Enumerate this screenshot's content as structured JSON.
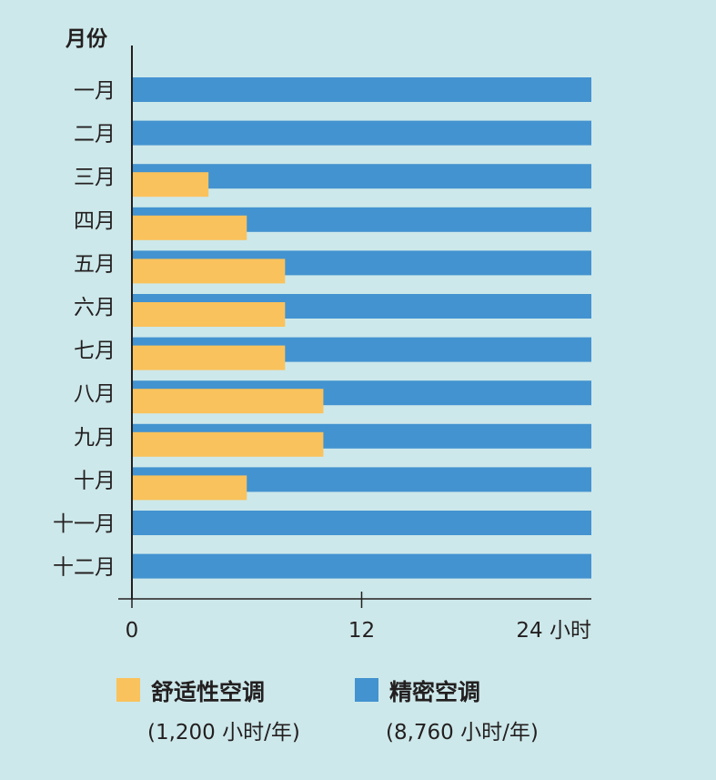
{
  "chart_data": {
    "type": "bar",
    "orientation": "horizontal",
    "ylabel": "月份",
    "xlabel_unit": "小时",
    "categories": [
      "一月",
      "二月",
      "三月",
      "四月",
      "五月",
      "六月",
      "七月",
      "八月",
      "九月",
      "十月",
      "十一月",
      "十二月"
    ],
    "series": [
      {
        "name": "精密空调",
        "note": "(8,760 小时/年)",
        "color": "#4393d0",
        "values": [
          24,
          24,
          24,
          24,
          24,
          24,
          24,
          24,
          24,
          24,
          24,
          24
        ]
      },
      {
        "name": "舒适性空调",
        "note": "(1,200 小时/年)",
        "color": "#fac25c",
        "values": [
          0,
          0,
          4,
          6,
          8,
          8,
          8,
          10,
          10,
          6,
          0,
          0
        ]
      }
    ],
    "xlim": [
      0,
      24
    ],
    "xticks": [
      0,
      12,
      24
    ],
    "xtick_labels": [
      "0",
      "12",
      "24 小时"
    ],
    "legend_order": [
      1,
      0
    ],
    "legend_position": "bottom",
    "grid": false
  }
}
